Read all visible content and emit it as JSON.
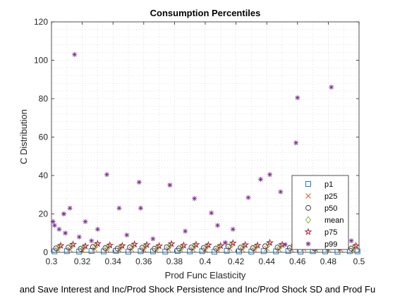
{
  "chart_data": {
    "type": "scatter",
    "title": "Consumption Percentiles",
    "xlabel": "Prod Func Elasticity",
    "ylabel": "C Distribution",
    "footer_label": "and Save Interest and Inc/Prod Shock Persistence and Inc/Prod Shock SD and Prod Fu",
    "xlim": [
      0.3,
      0.5
    ],
    "ylim": [
      0,
      120
    ],
    "xticks": [
      0.3,
      0.32,
      0.34,
      0.36,
      0.38,
      0.4,
      0.42,
      0.44,
      0.46,
      0.48,
      0.5
    ],
    "yticks": [
      0,
      20,
      40,
      60,
      80,
      100,
      120
    ],
    "grid": "on (major and minor dotted)",
    "legend_position": "bottom-right",
    "series": [
      {
        "name": "p1",
        "marker": "square",
        "color": "#0072bd",
        "x": [
          0.302,
          0.31,
          0.318,
          0.326,
          0.334,
          0.342,
          0.35,
          0.358,
          0.366,
          0.374,
          0.382,
          0.39,
          0.398,
          0.406,
          0.414,
          0.422,
          0.43,
          0.438,
          0.446,
          0.454,
          0.462,
          0.47,
          0.478,
          0.486,
          0.494,
          0.499
        ],
        "y": [
          0.5,
          0.6,
          0.4,
          0.7,
          0.5,
          0.8,
          0.3,
          0.6,
          0.5,
          0.4,
          0.7,
          0.5,
          0.6,
          0.3,
          0.8,
          0.5,
          0.4,
          0.6,
          0.5,
          0.7,
          0.4,
          0.6,
          0.5,
          0.3,
          0.6,
          0.5
        ]
      },
      {
        "name": "p25",
        "marker": "x",
        "color": "#d95319",
        "x": [
          0.304,
          0.312,
          0.32,
          0.328,
          0.336,
          0.344,
          0.352,
          0.36,
          0.368,
          0.376,
          0.384,
          0.392,
          0.4,
          0.408,
          0.416,
          0.424,
          0.432,
          0.44,
          0.448,
          0.456,
          0.464,
          0.472,
          0.48,
          0.488,
          0.496
        ],
        "y": [
          1.2,
          1.5,
          1.0,
          1.8,
          1.3,
          1.1,
          1.6,
          1.4,
          1.0,
          1.7,
          1.2,
          1.5,
          1.3,
          1.1,
          1.9,
          1.4,
          1.2,
          2.0,
          1.5,
          1.3,
          1.8,
          1.2,
          1.6,
          1.4,
          1.1
        ]
      },
      {
        "name": "p50",
        "marker": "circle",
        "color": "#333333",
        "x": [
          0.303,
          0.311,
          0.319,
          0.327,
          0.335,
          0.343,
          0.351,
          0.359,
          0.367,
          0.375,
          0.383,
          0.391,
          0.399,
          0.407,
          0.415,
          0.423,
          0.431,
          0.439,
          0.447,
          0.455,
          0.463,
          0.471,
          0.479,
          0.487,
          0.495
        ],
        "y": [
          2.1,
          2.5,
          1.8,
          2.8,
          2.2,
          2.0,
          2.6,
          2.4,
          1.9,
          2.7,
          2.1,
          2.5,
          2.3,
          2.0,
          3.0,
          2.4,
          2.2,
          3.2,
          2.5,
          2.3,
          2.9,
          2.1,
          2.6,
          2.4,
          2.0
        ]
      },
      {
        "name": "mean",
        "marker": "diamond",
        "color": "#77ac30",
        "x": [
          0.305,
          0.313,
          0.321,
          0.329,
          0.337,
          0.345,
          0.353,
          0.361,
          0.369,
          0.377,
          0.385,
          0.393,
          0.401,
          0.409,
          0.417,
          0.425,
          0.433,
          0.441,
          0.449,
          0.457,
          0.465,
          0.473,
          0.481,
          0.489,
          0.497
        ],
        "y": [
          2.8,
          3.3,
          2.5,
          3.6,
          2.9,
          2.7,
          3.4,
          3.1,
          2.6,
          3.5,
          2.8,
          3.2,
          3.0,
          2.7,
          3.9,
          3.1,
          2.9,
          4.1,
          3.2,
          3.0,
          3.7,
          2.8,
          3.4,
          3.1,
          2.7
        ]
      },
      {
        "name": "p75",
        "marker": "star",
        "color": "#a2142f",
        "x": [
          0.306,
          0.314,
          0.322,
          0.33,
          0.338,
          0.346,
          0.354,
          0.362,
          0.37,
          0.378,
          0.386,
          0.394,
          0.402,
          0.41,
          0.418,
          0.426,
          0.434,
          0.442,
          0.45,
          0.458,
          0.466,
          0.474,
          0.482,
          0.49,
          0.498
        ],
        "y": [
          3.5,
          4.1,
          3.2,
          4.5,
          3.7,
          3.4,
          4.2,
          3.9,
          3.3,
          4.4,
          3.6,
          4.0,
          3.8,
          3.4,
          4.8,
          3.9,
          3.6,
          5.0,
          4.0,
          3.8,
          4.6,
          3.5,
          4.2,
          3.9,
          3.4
        ]
      },
      {
        "name": "p99",
        "marker": "asterisk",
        "color": "#7e2f8e",
        "x": [
          0.301,
          0.302,
          0.305,
          0.308,
          0.312,
          0.315,
          0.322,
          0.33,
          0.336,
          0.344,
          0.357,
          0.358,
          0.377,
          0.393,
          0.404,
          0.408,
          0.418,
          0.428,
          0.436,
          0.442,
          0.449,
          0.459,
          0.46,
          0.471,
          0.482,
          0.487,
          0.309,
          0.318,
          0.326,
          0.349,
          0.366,
          0.387,
          0.413,
          0.452,
          0.476,
          0.495
        ],
        "y": [
          16,
          14,
          12,
          20,
          23,
          103,
          16,
          12,
          40.5,
          23,
          36.5,
          23,
          35,
          28,
          20.5,
          14,
          12,
          28.5,
          38,
          40.5,
          31.5,
          57,
          80.5,
          25,
          86,
          22,
          10,
          8,
          6,
          9,
          7,
          11,
          5,
          4,
          8,
          6
        ]
      }
    ]
  }
}
